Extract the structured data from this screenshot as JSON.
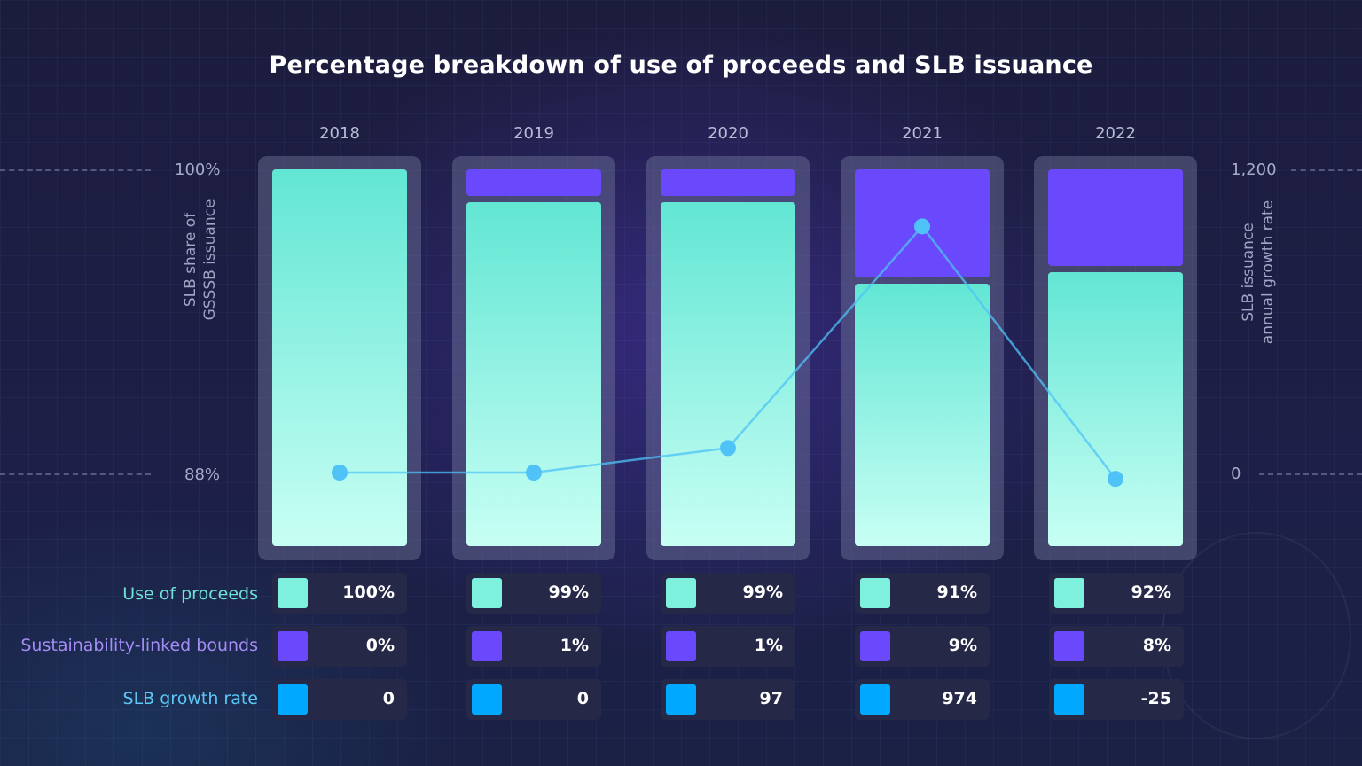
{
  "title": "Percentage breakdown of use of proceeds and SLB issuance",
  "left_axis": {
    "label_line1": "SLB share of",
    "label_line2": "GSSSB issuance",
    "ticks": [
      "100%",
      "88%"
    ]
  },
  "right_axis": {
    "label_line1": "SLB issuance",
    "label_line2": "annual growth rate",
    "ticks": [
      "1,200",
      "0"
    ]
  },
  "row_labels": {
    "proceeds": "Use of proceeds",
    "slb": "Sustainability-linked bounds",
    "growth": "SLB growth rate"
  },
  "colors": {
    "proceeds": "#7ef0de",
    "slb": "#6a48fb",
    "growth": "#00a8ff",
    "line": "#4fc3f7",
    "proceeds_label": "#6fe3d5",
    "slb_label": "#a58cf5",
    "growth_label": "#5cc8f5"
  },
  "chart_data": {
    "type": "bar",
    "stacked": true,
    "title": "Percentage breakdown of use of proceeds and SLB issuance",
    "categories": [
      "2018",
      "2019",
      "2020",
      "2021",
      "2022"
    ],
    "series": [
      {
        "name": "Use of proceeds",
        "values": [
          100,
          99,
          99,
          91,
          92
        ],
        "display": [
          "100%",
          "99%",
          "99%",
          "91%",
          "92%"
        ]
      },
      {
        "name": "Sustainability-linked bounds",
        "values": [
          0,
          1,
          1,
          9,
          8
        ],
        "display": [
          "0%",
          "1%",
          "1%",
          "9%",
          "8%"
        ]
      },
      {
        "name": "SLB growth rate",
        "type": "line",
        "axis": "right",
        "values": [
          0,
          0,
          97,
          974,
          -25
        ],
        "display": [
          "0",
          "0",
          "97",
          "974",
          "-25"
        ]
      }
    ],
    "ylim_left": [
      88,
      100
    ],
    "ylim_right": [
      0,
      1200
    ],
    "ylabel_left": "SLB share of GSSSB issuance",
    "ylabel_right": "SLB issuance annual growth rate"
  }
}
